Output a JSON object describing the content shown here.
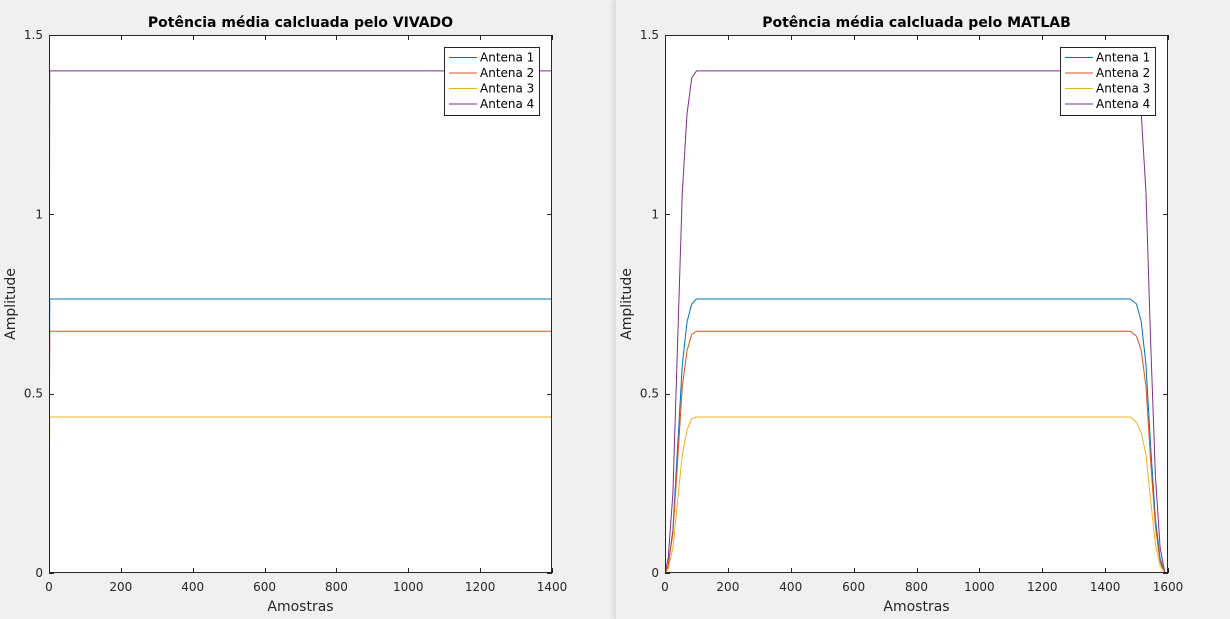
{
  "chart_data": [
    {
      "type": "line",
      "title": "Potência média calcluada pelo VIVADO",
      "xlabel": "Amostras",
      "ylabel": "Amplitude",
      "xlim": [
        0,
        1400
      ],
      "ylim": [
        0,
        1.5
      ],
      "xticks": [
        0,
        200,
        400,
        600,
        800,
        1000,
        1200,
        1400
      ],
      "xtick_labels": [
        "0",
        "200",
        "400",
        "600",
        "800",
        "1000",
        "1200",
        "1400"
      ],
      "yticks": [
        0,
        0.5,
        1,
        1.5
      ],
      "ytick_labels": [
        "0",
        "0.5",
        "1",
        "1.5"
      ],
      "grid": false,
      "legend_position": "top-right",
      "series": [
        {
          "name": "Antena 1",
          "color": "#0072BD",
          "points": [
            [
              0,
              0
            ],
            [
              2,
              0.764
            ],
            [
              1400,
              0.764
            ]
          ]
        },
        {
          "name": "Antena 2",
          "color": "#D95319",
          "points": [
            [
              0,
              0
            ],
            [
              2,
              0.674
            ],
            [
              1400,
              0.674
            ]
          ]
        },
        {
          "name": "Antena 3",
          "color": "#EDB120",
          "points": [
            [
              0,
              0
            ],
            [
              2,
              0.435
            ],
            [
              1400,
              0.435
            ]
          ]
        },
        {
          "name": "Antena 4",
          "color": "#7E2F8E",
          "points": [
            [
              0,
              0
            ],
            [
              2,
              1.4
            ],
            [
              1400,
              1.4
            ]
          ]
        }
      ]
    },
    {
      "type": "line",
      "title": "Potência média calcluada pelo MATLAB",
      "xlabel": "Amostras",
      "ylabel": "Amplitude",
      "xlim": [
        0,
        1600
      ],
      "ylim": [
        0,
        1.5
      ],
      "xticks": [
        0,
        200,
        400,
        600,
        800,
        1000,
        1200,
        1400,
        1600
      ],
      "xtick_labels": [
        "0",
        "200",
        "400",
        "600",
        "800",
        "1000",
        "1200",
        "1400",
        "1600"
      ],
      "yticks": [
        0,
        0.5,
        1,
        1.5
      ],
      "ytick_labels": [
        "0",
        "0.5",
        "1",
        "1.5"
      ],
      "grid": false,
      "legend_position": "top-right",
      "series": [
        {
          "name": "Antena 1",
          "color": "#0072BD",
          "points": [
            [
              0,
              0
            ],
            [
              10,
              0.02
            ],
            [
              25,
              0.12
            ],
            [
              40,
              0.35
            ],
            [
              55,
              0.58
            ],
            [
              70,
              0.7
            ],
            [
              85,
              0.75
            ],
            [
              100,
              0.764
            ],
            [
              1480,
              0.764
            ],
            [
              1500,
              0.75
            ],
            [
              1515,
              0.7
            ],
            [
              1530,
              0.58
            ],
            [
              1545,
              0.35
            ],
            [
              1560,
              0.15
            ],
            [
              1575,
              0.04
            ],
            [
              1590,
              0.0
            ]
          ]
        },
        {
          "name": "Antena 2",
          "color": "#D95319",
          "points": [
            [
              0,
              0
            ],
            [
              10,
              0.02
            ],
            [
              25,
              0.11
            ],
            [
              40,
              0.31
            ],
            [
              55,
              0.52
            ],
            [
              70,
              0.62
            ],
            [
              85,
              0.665
            ],
            [
              100,
              0.674
            ],
            [
              1480,
              0.674
            ],
            [
              1500,
              0.66
            ],
            [
              1515,
              0.62
            ],
            [
              1530,
              0.52
            ],
            [
              1545,
              0.31
            ],
            [
              1560,
              0.13
            ],
            [
              1575,
              0.03
            ],
            [
              1590,
              0.0
            ]
          ]
        },
        {
          "name": "Antena 3",
          "color": "#EDB120",
          "points": [
            [
              0,
              0
            ],
            [
              10,
              0.01
            ],
            [
              25,
              0.07
            ],
            [
              40,
              0.2
            ],
            [
              55,
              0.33
            ],
            [
              70,
              0.4
            ],
            [
              85,
              0.43
            ],
            [
              100,
              0.435
            ],
            [
              1480,
              0.435
            ],
            [
              1500,
              0.42
            ],
            [
              1515,
              0.39
            ],
            [
              1530,
              0.33
            ],
            [
              1545,
              0.2
            ],
            [
              1560,
              0.08
            ],
            [
              1575,
              0.02
            ],
            [
              1590,
              0.0
            ]
          ]
        },
        {
          "name": "Antena 4",
          "color": "#7E2F8E",
          "points": [
            [
              0,
              0
            ],
            [
              10,
              0.04
            ],
            [
              25,
              0.22
            ],
            [
              40,
              0.64
            ],
            [
              55,
              1.06
            ],
            [
              70,
              1.28
            ],
            [
              85,
              1.38
            ],
            [
              100,
              1.4
            ],
            [
              1480,
              1.4
            ],
            [
              1500,
              1.37
            ],
            [
              1515,
              1.28
            ],
            [
              1530,
              1.06
            ],
            [
              1545,
              0.64
            ],
            [
              1560,
              0.27
            ],
            [
              1575,
              0.07
            ],
            [
              1590,
              0.0
            ]
          ]
        }
      ]
    }
  ]
}
